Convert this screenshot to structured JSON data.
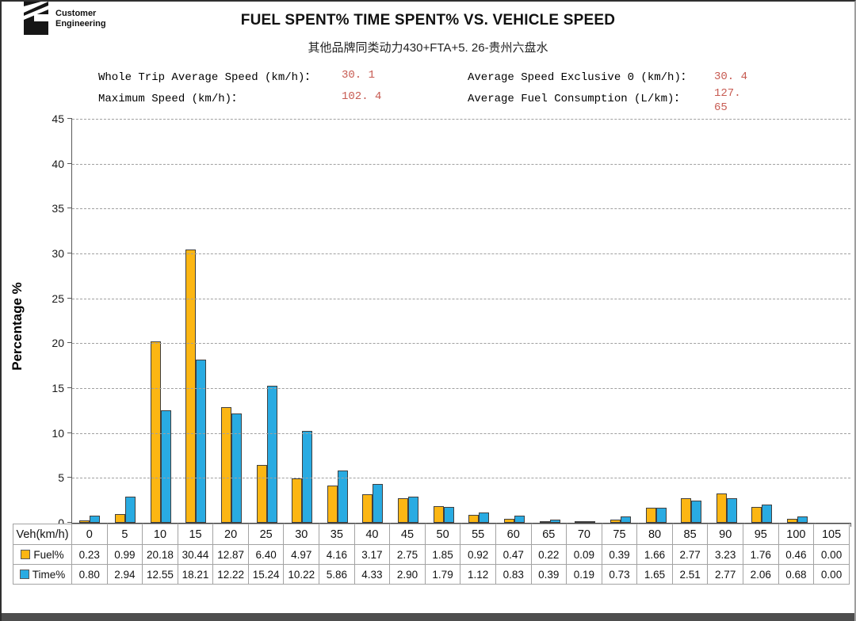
{
  "logo": {
    "line1": "Customer",
    "line2": "Engineering"
  },
  "header": {
    "title": "FUEL SPENT% TIME SPENT% VS. VEHICLE SPEED",
    "subtitle": "其他品牌同类动力430+FTA+5. 26-贵州六盘水"
  },
  "stats": [
    {
      "label": "Whole Trip Average Speed (km/h)：",
      "value": "30. 1"
    },
    {
      "label": "Average Speed Exclusive 0 (km/h)：",
      "value": "30. 4"
    },
    {
      "label": "Maximum Speed (km/h)：",
      "value": "102. 4"
    },
    {
      "label": "Average Fuel Consumption (L/km)：",
      "value": "127. 65"
    }
  ],
  "colors": {
    "fuel": "#FCB613",
    "time": "#29ABE2",
    "stat_value_red": "#C75B52",
    "gridline": "#A0A0A0",
    "axis": "#595959"
  },
  "chart_data": {
    "type": "bar",
    "title": "FUEL SPENT% TIME SPENT% VS. VEHICLE SPEED",
    "xlabel": "Veh(km/h)",
    "ylabel": "Percentage %",
    "ylim": [
      0,
      45
    ],
    "yticks": [
      0,
      5,
      10,
      15,
      20,
      25,
      30,
      35,
      40,
      45
    ],
    "grid": "horizontal-dashed",
    "legend_position": "table-left",
    "categories": [
      0,
      5,
      10,
      15,
      20,
      25,
      30,
      35,
      40,
      45,
      50,
      55,
      60,
      65,
      70,
      75,
      80,
      85,
      90,
      95,
      100,
      105
    ],
    "series": [
      {
        "name": "Fuel%",
        "color": "#FCB613",
        "values": [
          0.23,
          0.99,
          20.18,
          30.44,
          12.87,
          6.4,
          4.97,
          4.16,
          3.17,
          2.75,
          1.85,
          0.92,
          0.47,
          0.22,
          0.09,
          0.39,
          1.66,
          2.77,
          3.23,
          1.76,
          0.46,
          0.0
        ]
      },
      {
        "name": "Time%",
        "color": "#29ABE2",
        "values": [
          0.8,
          2.94,
          12.55,
          18.21,
          12.22,
          15.24,
          10.22,
          5.86,
          4.33,
          2.9,
          1.79,
          1.12,
          0.83,
          0.39,
          0.19,
          0.73,
          1.65,
          2.51,
          2.77,
          2.06,
          0.68,
          0.0
        ]
      }
    ]
  },
  "table": {
    "corner_label": "Veh(km/h)",
    "columns": [
      "0",
      "5",
      "10",
      "15",
      "20",
      "25",
      "30",
      "35",
      "40",
      "45",
      "50",
      "55",
      "60",
      "65",
      "70",
      "75",
      "80",
      "85",
      "90",
      "95",
      "100",
      "105"
    ],
    "rows": [
      {
        "label": "Fuel%",
        "color": "#FCB613",
        "values": [
          "0.23",
          "0.99",
          "20.18",
          "30.44",
          "12.87",
          "6.40",
          "4.97",
          "4.16",
          "3.17",
          "2.75",
          "1.85",
          "0.92",
          "0.47",
          "0.22",
          "0.09",
          "0.39",
          "1.66",
          "2.77",
          "3.23",
          "1.76",
          "0.46",
          "0.00"
        ]
      },
      {
        "label": "Time%",
        "color": "#29ABE2",
        "values": [
          "0.80",
          "2.94",
          "12.55",
          "18.21",
          "12.22",
          "15.24",
          "10.22",
          "5.86",
          "4.33",
          "2.90",
          "1.79",
          "1.12",
          "0.83",
          "0.39",
          "0.19",
          "0.73",
          "1.65",
          "2.51",
          "2.77",
          "2.06",
          "0.68",
          "0.00"
        ]
      }
    ]
  }
}
